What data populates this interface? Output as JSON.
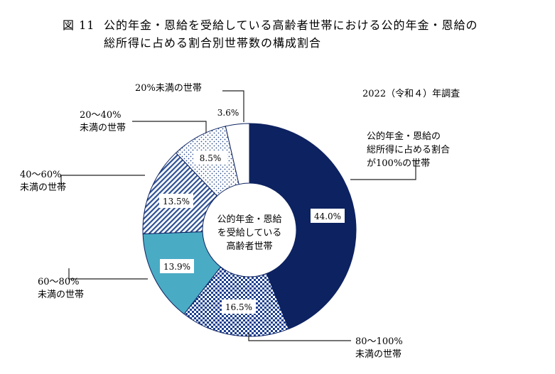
{
  "chart_data": {
    "type": "pie",
    "title_number": "図 11",
    "title_line1": "公的年金・恩給を受給している高齢者世帯における公的年金・恩給の",
    "title_line2": "総所得に占める割合別世帯数の構成割合",
    "note": "2022（令和４）年調査",
    "center_label": [
      "公的年金・恩給",
      "を受給している",
      "高齢者世帯"
    ],
    "categories": [
      "公的年金・恩給の総所得に占める割合が100％の世帯",
      "80〜100％未満の世帯",
      "60〜80％未満の世帯",
      "40〜60％未満の世帯",
      "20〜40％未満の世帯",
      "20％未満の世帯"
    ],
    "values": [
      44.0,
      16.5,
      13.9,
      13.5,
      8.5,
      3.6
    ],
    "value_labels": [
      "44.0%",
      "16.5%",
      "13.9%",
      "13.5%",
      "8.5%",
      "3.6%"
    ],
    "category_label_lines": [
      [
        "公的年金・恩給の",
        "総所得に占める割合",
        "が100%の世帯"
      ],
      [
        "80〜100%",
        "未満の世帯"
      ],
      [
        "60〜80%",
        "未満の世帯"
      ],
      [
        "40〜60%",
        "未満の世帯"
      ],
      [
        "20〜40%",
        "未満の世帯"
      ],
      [
        "20%未満の世帯"
      ]
    ],
    "unit": "%",
    "colors": {
      "navy": "#0d2260",
      "check": "#1c3f8f",
      "teal": "#4aabc5",
      "hatch": "#2c4f92",
      "dot": "#2c4f92",
      "white": "#ffffff",
      "line": "#222222"
    }
  }
}
